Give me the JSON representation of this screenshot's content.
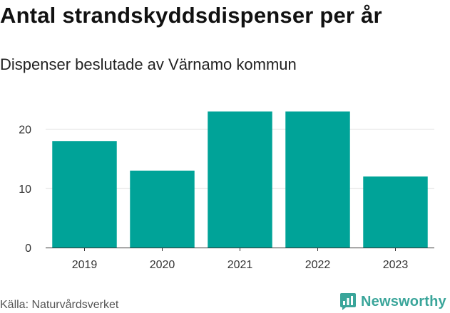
{
  "chart_data": {
    "type": "bar",
    "title": "Antal strandskyddsdispenser per år",
    "subtitle": "Dispenser beslutade av Värnamo kommun",
    "categories": [
      "2019",
      "2020",
      "2021",
      "2022",
      "2023"
    ],
    "values": [
      18,
      13,
      23,
      23,
      12
    ],
    "xlabel": "",
    "ylabel": "",
    "ylim": [
      0,
      25
    ],
    "yticks": [
      0,
      10,
      20
    ],
    "ytick_labels": [
      "0",
      "10",
      "20"
    ],
    "grid": true,
    "bar_color": "#00a398"
  },
  "footer": {
    "source": "Källa: Naturvårdsverket",
    "brand": "Newsworthy",
    "brand_color": "#3aa59a",
    "brand_icon": "bar-chart-speech-bubble-icon"
  }
}
